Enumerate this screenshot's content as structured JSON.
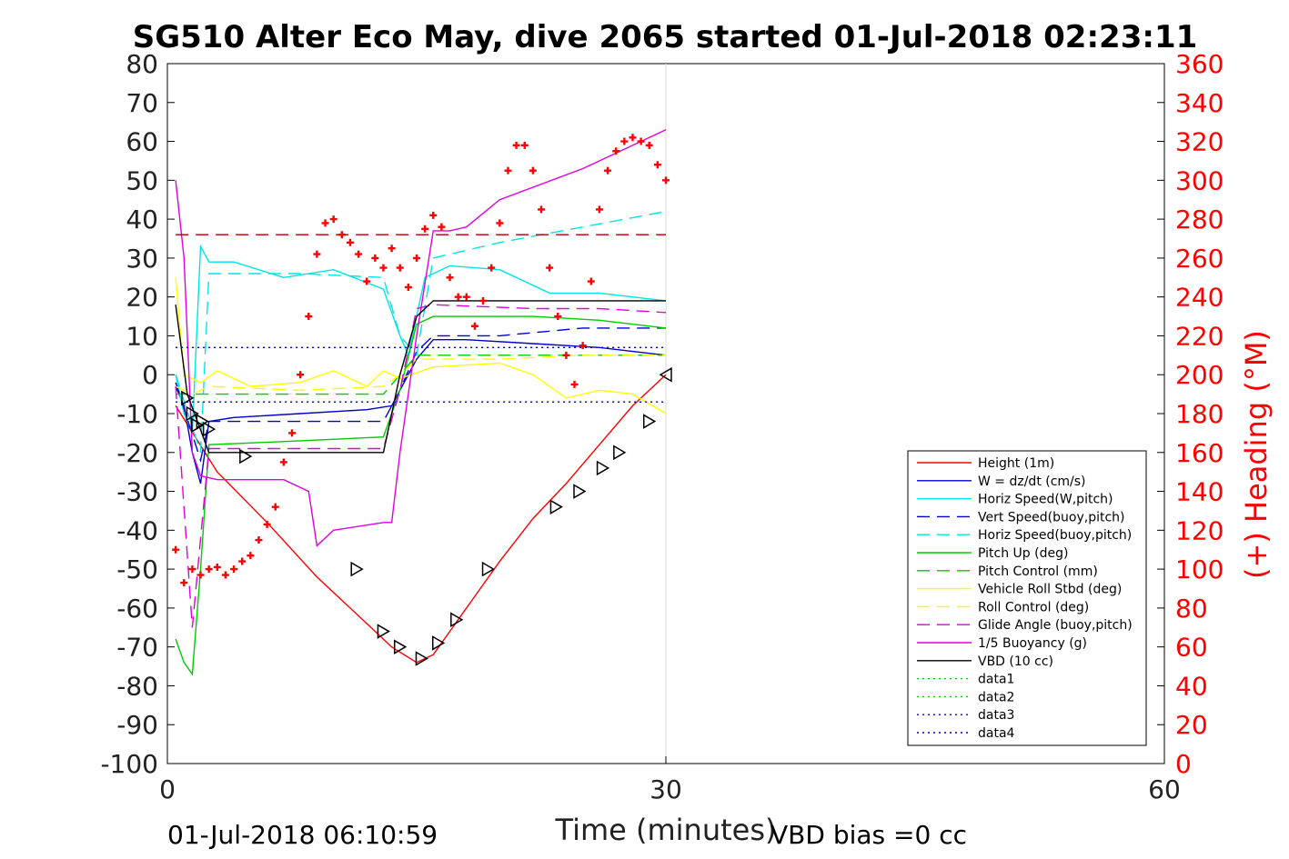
{
  "chart_data": {
    "type": "line",
    "title": "SG510 Alter Eco May, dive 2065 started 01-Jul-2018 02:23:11",
    "xlabel": "Time (minutes)",
    "ylabel_right": "(+) Heading (°M)",
    "footer_left": "01-Jul-2018 06:10:59",
    "footer_right": "VBD bias =0 cc",
    "xlim": [
      0,
      60
    ],
    "ylim": [
      -100,
      80
    ],
    "y2lim": [
      0,
      360
    ],
    "x_ticks": [
      "0",
      "30",
      "60"
    ],
    "y_ticks": [
      "80",
      "70",
      "60",
      "50",
      "40",
      "30",
      "20",
      "10",
      "0",
      "-10",
      "-20",
      "-30",
      "-40",
      "-50",
      "-60",
      "-70",
      "-80",
      "-90",
      "-100"
    ],
    "y2_ticks": [
      "360",
      "340",
      "320",
      "300",
      "280",
      "260",
      "240",
      "220",
      "200",
      "180",
      "160",
      "140",
      "120",
      "100",
      "80",
      "60",
      "40",
      "20",
      "0"
    ],
    "legend_position": "lower-right",
    "colors": {
      "height": "#ff0000",
      "w": "#0000cd",
      "horiz": "#00e5e5",
      "vert_buoy": "#0000cd",
      "pitch": "#00cc00",
      "roll": "#ffff00",
      "glide": "#e000e0",
      "buoyancy": "#e000e0",
      "vbd": "#000000",
      "heading": "#ff0000",
      "heading_ref": "#aa0000"
    },
    "series": [
      {
        "name": "Height (1m)",
        "x": [
          0.5,
          3,
          6,
          9,
          12,
          13.5,
          15,
          16,
          17,
          18.5,
          20,
          22,
          24,
          26,
          28,
          30
        ],
        "values": [
          -8,
          -25,
          -38,
          -52,
          -64,
          -70,
          -74,
          -72,
          -66,
          -57,
          -48,
          -37,
          -28,
          -18,
          -8,
          0
        ]
      },
      {
        "name": "W = dz/dt (cm/s)",
        "x": [
          0.5,
          1,
          1.5,
          2,
          2.5,
          4,
          8,
          12,
          13.5,
          14,
          15,
          16,
          18,
          22,
          26,
          30
        ],
        "values": [
          -3,
          -8,
          -20,
          -28,
          -12,
          -11,
          -10,
          -9,
          -8,
          -4,
          4,
          9,
          9,
          8,
          7,
          5
        ]
      },
      {
        "name": "Horiz Speed(W,pitch)",
        "x": [
          0.5,
          1,
          1.5,
          2,
          2.5,
          4,
          7,
          10,
          13,
          14,
          14.5,
          15.5,
          17,
          20,
          23,
          26,
          30
        ],
        "values": [
          0,
          -10,
          -15,
          33,
          29,
          29,
          25,
          27,
          22,
          10,
          5,
          25,
          28,
          27,
          21,
          21,
          19
        ]
      },
      {
        "name": "Vert Speed(buoy,pitch)",
        "x": [
          0.5,
          2,
          2.5,
          8,
          13,
          14,
          15,
          16,
          20,
          25,
          30
        ],
        "values": [
          -2,
          -22,
          -12,
          -12,
          -12,
          -4,
          6,
          10,
          10,
          12,
          12
        ]
      },
      {
        "name": "Horiz Speed(buoy,pitch)",
        "x": [
          0.5,
          2,
          2.5,
          8,
          13,
          14,
          15,
          16,
          20,
          25,
          30
        ],
        "values": [
          0,
          -20,
          26,
          26,
          25,
          10,
          5,
          30,
          34,
          38,
          42
        ]
      },
      {
        "name": "Pitch Up (deg)",
        "x": [
          0.5,
          1,
          1.5,
          2,
          2.5,
          8,
          13,
          14,
          15,
          16,
          22,
          26,
          30
        ],
        "values": [
          -68,
          -74,
          -77,
          -50,
          -18,
          -17,
          -16,
          -4,
          13,
          15,
          15,
          14,
          12
        ]
      },
      {
        "name": "Pitch Control (mm)",
        "x": [
          0.5,
          1.5,
          2.5,
          13,
          14,
          15,
          30
        ],
        "values": [
          -5,
          -5,
          -5,
          -5,
          0,
          5,
          5
        ]
      },
      {
        "name": "Vehicle Roll Stbd (deg)",
        "x": [
          0.5,
          1,
          2,
          3,
          5,
          8,
          10,
          12,
          13,
          14,
          16,
          20,
          22,
          24,
          26,
          28,
          30
        ],
        "values": [
          25,
          0,
          -2,
          1,
          -3,
          -2,
          1,
          -3,
          1,
          -1,
          2,
          3,
          0,
          -6,
          -4,
          -5,
          -10
        ]
      },
      {
        "name": "Roll Control (deg)",
        "x": [
          0.5,
          1.5,
          2.5,
          8,
          13,
          14,
          15,
          20,
          25,
          30
        ],
        "values": [
          -3,
          -5,
          -3,
          -4,
          -3,
          0,
          4,
          4,
          5,
          5
        ]
      },
      {
        "name": "Glide Angle (buoy,pitch)",
        "x": [
          0.5,
          1.5,
          2.5,
          8,
          13,
          14,
          15,
          16,
          22,
          26,
          30
        ],
        "values": [
          -3,
          -65,
          -19,
          -19,
          -19,
          -4,
          17,
          18,
          17,
          17,
          16
        ]
      },
      {
        "name": "1/5 Buoyancy (g)",
        "x": [
          0.5,
          1,
          1.5,
          2,
          3,
          5,
          7,
          8.5,
          9,
          10,
          13,
          13.5,
          14,
          15,
          16,
          17,
          18,
          20,
          25,
          30
        ],
        "values": [
          50,
          30,
          -20,
          -26,
          -27,
          -27,
          -27,
          -30,
          -44,
          -40,
          -38,
          -38,
          -20,
          10,
          37,
          37,
          38,
          45,
          53,
          63
        ]
      },
      {
        "name": "VBD (10 cc)",
        "x": [
          0.5,
          1.2,
          2.5,
          8,
          13,
          14,
          15,
          16,
          17.5,
          20,
          25,
          30
        ],
        "values": [
          18,
          -5,
          -20,
          -20,
          -20,
          0,
          15,
          19,
          19,
          19,
          19,
          19
        ]
      },
      {
        "name": "data1",
        "x": [
          0.5,
          30
        ],
        "values": [
          7,
          7
        ]
      },
      {
        "name": "data2",
        "x": [
          0.5,
          30
        ],
        "values": [
          -7,
          -7
        ]
      },
      {
        "name": "data3",
        "x": [
          0.5,
          30
        ],
        "values": [
          7,
          7
        ]
      },
      {
        "name": "data4",
        "x": [
          0.5,
          30
        ],
        "values": [
          -7,
          -7
        ]
      }
    ],
    "heading_reference": 272,
    "heading_markers": {
      "x": [
        0.5,
        1,
        1.5,
        2,
        2.5,
        3,
        3.5,
        4,
        4.5,
        5,
        5.5,
        6,
        6.5,
        7,
        7.5,
        8,
        8.5,
        9,
        9.5,
        10,
        10.5,
        11,
        11.5,
        12,
        12.5,
        13,
        13.5,
        14,
        14.5,
        15,
        15.5,
        16,
        16.5,
        17,
        17.5,
        18,
        18.5,
        19,
        19.5,
        20,
        20.5,
        21,
        21.5,
        22,
        22.5,
        23,
        23.5,
        24,
        24.5,
        25,
        25.5,
        26,
        26.5,
        27,
        27.5,
        28,
        28.5,
        29,
        29.5,
        30
      ],
      "values": [
        110,
        93,
        100,
        97,
        100,
        101,
        97,
        100,
        104,
        107,
        115,
        123,
        132,
        155,
        170,
        200,
        230,
        262,
        278,
        280,
        272,
        268,
        262,
        248,
        260,
        255,
        265,
        255,
        245,
        260,
        275,
        282,
        276,
        250,
        240,
        240,
        225,
        238,
        255,
        278,
        305,
        318,
        318,
        305,
        285,
        255,
        230,
        210,
        195,
        215,
        248,
        285,
        305,
        315,
        320,
        322,
        320,
        318,
        308,
        300
      ]
    },
    "vbd_markers": {
      "x": [
        1.2,
        1.5,
        1.8,
        2.1,
        2.5,
        4.7,
        11.4,
        13.0,
        14.0,
        15.3,
        16.3,
        17.4,
        19.3,
        23.4,
        24.8,
        26.2,
        27.2,
        29.0,
        30.0
      ],
      "values": [
        -6,
        -10,
        -13,
        -12,
        -14,
        -21,
        -50,
        -66,
        -70,
        -73,
        -69,
        -63,
        -50,
        -34,
        -30,
        -24,
        -20,
        -12,
        0
      ]
    }
  },
  "legend": {
    "items": [
      {
        "label": "Height (1m)",
        "color": "#ff0000",
        "dash": ""
      },
      {
        "label": "W = dz/dt (cm/s)",
        "color": "#0000cd",
        "dash": ""
      },
      {
        "label": "Horiz Speed(W,pitch)",
        "color": "#00e5e5",
        "dash": ""
      },
      {
        "label": "Vert Speed(buoy,pitch)",
        "color": "#0000cd",
        "dash": "14,8"
      },
      {
        "label": "Horiz Speed(buoy,pitch)",
        "color": "#00e5e5",
        "dash": "14,8"
      },
      {
        "label": "Pitch Up (deg)",
        "color": "#00cc00",
        "dash": ""
      },
      {
        "label": "Pitch Control (mm)",
        "color": "#00cc00",
        "dash": "14,8"
      },
      {
        "label": "Vehicle Roll Stbd (deg)",
        "color": "#ffff00",
        "dash": ""
      },
      {
        "label": "Roll Control (deg)",
        "color": "#ffff00",
        "dash": "14,8"
      },
      {
        "label": "Glide Angle (buoy,pitch)",
        "color": "#e000e0",
        "dash": "14,8"
      },
      {
        "label": "1/5 Buoyancy (g)",
        "color": "#e000e0",
        "dash": ""
      },
      {
        "label": "VBD (10 cc)",
        "color": "#000000",
        "dash": ""
      },
      {
        "label": "data1",
        "color": "#00cc00",
        "dash": "2,4"
      },
      {
        "label": "data2",
        "color": "#00cc00",
        "dash": "2,4"
      },
      {
        "label": "data3",
        "color": "#0000cd",
        "dash": "2,4"
      },
      {
        "label": "data4",
        "color": "#0000cd",
        "dash": "2,4"
      }
    ]
  }
}
